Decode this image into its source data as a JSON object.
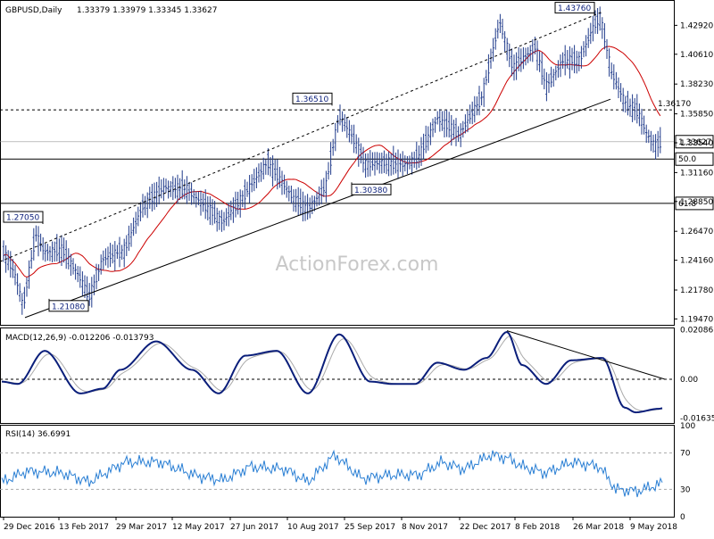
{
  "chart_data": [
    {
      "type": "ohlc",
      "panel": "price",
      "header": {
        "symbol": "GBPUSD,Daily",
        "ohlc": "1.33379 1.33979 1.33345 1.33627"
      },
      "ylim": [
        1.19,
        1.448
      ],
      "yticks": [
        "1.19470",
        "1.21780",
        "1.24160",
        "1.26470",
        "1.28850",
        "1.31160",
        "1.33540",
        "1.35850",
        "1.38230",
        "1.40610",
        "1.42920"
      ],
      "tick_values": [
        1.1947,
        1.2178,
        1.2416,
        1.2647,
        1.2885,
        1.3116,
        1.3354,
        1.3585,
        1.3823,
        1.4061,
        1.4292
      ],
      "x_labels": [
        "29 Dec 2016",
        "13 Feb 2017",
        "29 Mar 2017",
        "12 May 2017",
        "27 Jun 2017",
        "10 Aug 2017",
        "25 Sep 2017",
        "8 Nov 2017",
        "22 Dec 2017",
        "8 Feb 2018",
        "26 Mar 2018",
        "9 May 2018"
      ],
      "current_price": {
        "value": 1.33627,
        "label": "1.33627"
      },
      "levels": [
        {
          "value": 1.3617,
          "label": "1.36170",
          "style": "dashed"
        },
        {
          "value": 1.3224,
          "label": "50.0",
          "style": "solid"
        },
        {
          "value": 1.287,
          "label": "61.8",
          "style": "solid"
        }
      ],
      "annotations": [
        {
          "label": "1.27050",
          "value": 1.2705
        },
        {
          "label": "1.21080",
          "value": 1.2108
        },
        {
          "label": "1.36510",
          "value": 1.3651
        },
        {
          "label": "1.30380",
          "value": 1.3038
        },
        {
          "label": "1.43760",
          "value": 1.4376
        }
      ],
      "sma_color": "#cc0000",
      "bar_color": "#1f3a8a",
      "watermark": "ActionForex.com"
    },
    {
      "type": "line",
      "panel": "macd",
      "header": "MACD(12,26,9) -0.012206 -0.013793",
      "ylim": [
        -0.0185,
        0.0215
      ],
      "ytick_labels": [
        "0.020861",
        "0.00",
        "-0.016357"
      ],
      "ytick_values": [
        0.020861,
        0.0,
        -0.016357
      ],
      "macd_color": "#0a1e7a",
      "signal_color": "#aaaaaa"
    },
    {
      "type": "line",
      "panel": "rsi",
      "header": "RSI(14) 36.6991",
      "ylim": [
        0,
        100
      ],
      "ytick_labels": [
        "100",
        "70",
        "30",
        "0"
      ],
      "ytick_values": [
        100,
        70,
        30,
        0
      ],
      "rsi_color": "#2a7fd4"
    }
  ]
}
